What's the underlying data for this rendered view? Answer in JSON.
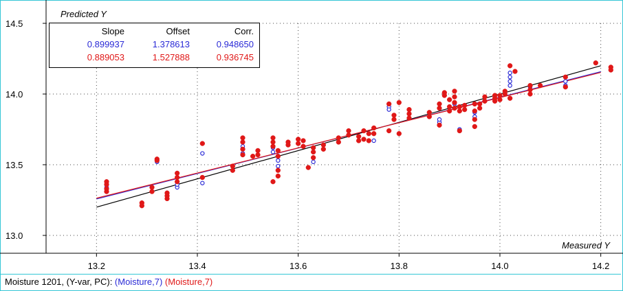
{
  "chart_data": {
    "type": "scatter",
    "ylabel": "Predicted Y",
    "xlabel": "Measured Y",
    "xlim": [
      13.1,
      14.24
    ],
    "ylim": [
      13.0,
      14.5
    ],
    "xticks": [
      "13.2",
      "13.4",
      "13.6",
      "13.8",
      "14.0",
      "14.2"
    ],
    "yticks": [
      "13.0",
      "13.5",
      "14.0",
      "14.5"
    ],
    "grid": true,
    "colors": {
      "blue": "#2a2ad6",
      "red": "#e01818",
      "target": "#000000"
    },
    "stats": {
      "headers": [
        "Slope",
        "Offset",
        "Corr."
      ],
      "rows": [
        {
          "color": "blue",
          "values": [
            "0.899937",
            "1.378613",
            "0.948650"
          ]
        },
        {
          "color": "red",
          "values": [
            "0.889053",
            "1.527888",
            "0.936745"
          ]
        }
      ]
    },
    "series": [
      {
        "style": "open-circle",
        "color": "blue",
        "points": [
          [
            13.22,
            13.34
          ],
          [
            13.22,
            13.31
          ],
          [
            13.32,
            13.52
          ],
          [
            13.36,
            13.34
          ],
          [
            13.36,
            13.36
          ],
          [
            13.41,
            13.58
          ],
          [
            13.41,
            13.37
          ],
          [
            13.49,
            13.63
          ],
          [
            13.49,
            13.58
          ],
          [
            13.55,
            13.62
          ],
          [
            13.55,
            13.59
          ],
          [
            13.56,
            13.53
          ],
          [
            13.56,
            13.49
          ],
          [
            13.63,
            13.52
          ],
          [
            13.75,
            13.67
          ],
          [
            13.78,
            13.91
          ],
          [
            13.78,
            13.89
          ],
          [
            13.88,
            13.8
          ],
          [
            13.88,
            13.82
          ],
          [
            13.91,
            13.93
          ],
          [
            13.92,
            13.75
          ],
          [
            13.95,
            13.87
          ],
          [
            13.95,
            13.84
          ],
          [
            14.02,
            14.15
          ],
          [
            14.02,
            14.12
          ],
          [
            14.02,
            14.09
          ],
          [
            14.02,
            14.06
          ],
          [
            14.03,
            14.16
          ],
          [
            14.06,
            14.05
          ],
          [
            14.13,
            14.09
          ],
          [
            14.13,
            14.06
          ]
        ]
      },
      {
        "style": "filled-circle",
        "color": "red",
        "points": [
          [
            13.22,
            13.38
          ],
          [
            13.22,
            13.36
          ],
          [
            13.22,
            13.33
          ],
          [
            13.22,
            13.31
          ],
          [
            13.29,
            13.23
          ],
          [
            13.29,
            13.21
          ],
          [
            13.31,
            13.34
          ],
          [
            13.31,
            13.31
          ],
          [
            13.32,
            13.54
          ],
          [
            13.32,
            13.53
          ],
          [
            13.34,
            13.3
          ],
          [
            13.34,
            13.28
          ],
          [
            13.34,
            13.26
          ],
          [
            13.36,
            13.44
          ],
          [
            13.36,
            13.41
          ],
          [
            13.36,
            13.38
          ],
          [
            13.41,
            13.65
          ],
          [
            13.41,
            13.41
          ],
          [
            13.47,
            13.49
          ],
          [
            13.47,
            13.46
          ],
          [
            13.49,
            13.69
          ],
          [
            13.49,
            13.66
          ],
          [
            13.49,
            13.61
          ],
          [
            13.49,
            13.57
          ],
          [
            13.51,
            13.56
          ],
          [
            13.52,
            13.6
          ],
          [
            13.52,
            13.57
          ],
          [
            13.55,
            13.69
          ],
          [
            13.55,
            13.66
          ],
          [
            13.55,
            13.63
          ],
          [
            13.55,
            13.38
          ],
          [
            13.56,
            13.6
          ],
          [
            13.56,
            13.56
          ],
          [
            13.56,
            13.46
          ],
          [
            13.56,
            13.42
          ],
          [
            13.58,
            13.66
          ],
          [
            13.58,
            13.64
          ],
          [
            13.6,
            13.68
          ],
          [
            13.6,
            13.65
          ],
          [
            13.61,
            13.67
          ],
          [
            13.61,
            13.63
          ],
          [
            13.63,
            13.62
          ],
          [
            13.63,
            13.59
          ],
          [
            13.63,
            13.55
          ],
          [
            13.62,
            13.48
          ],
          [
            13.65,
            13.64
          ],
          [
            13.65,
            13.61
          ],
          [
            13.68,
            13.69
          ],
          [
            13.68,
            13.66
          ],
          [
            13.7,
            13.74
          ],
          [
            13.7,
            13.71
          ],
          [
            13.72,
            13.7
          ],
          [
            13.72,
            13.67
          ],
          [
            13.73,
            13.74
          ],
          [
            13.73,
            13.68
          ],
          [
            13.74,
            13.72
          ],
          [
            13.74,
            13.67
          ],
          [
            13.75,
            13.76
          ],
          [
            13.75,
            13.72
          ],
          [
            13.78,
            13.93
          ],
          [
            13.78,
            13.74
          ],
          [
            13.79,
            13.85
          ],
          [
            13.79,
            13.82
          ],
          [
            13.8,
            13.94
          ],
          [
            13.8,
            13.72
          ],
          [
            13.82,
            13.89
          ],
          [
            13.82,
            13.86
          ],
          [
            13.82,
            13.83
          ],
          [
            13.86,
            13.87
          ],
          [
            13.86,
            13.84
          ],
          [
            13.88,
            13.93
          ],
          [
            13.88,
            13.9
          ],
          [
            13.88,
            13.78
          ],
          [
            13.89,
            14.01
          ],
          [
            13.89,
            13.99
          ],
          [
            13.9,
            13.96
          ],
          [
            13.9,
            13.91
          ],
          [
            13.9,
            13.88
          ],
          [
            13.91,
            14.02
          ],
          [
            13.91,
            13.98
          ],
          [
            13.91,
            13.94
          ],
          [
            13.91,
            13.9
          ],
          [
            13.92,
            13.91
          ],
          [
            13.92,
            13.88
          ],
          [
            13.92,
            13.74
          ],
          [
            13.93,
            13.92
          ],
          [
            13.93,
            13.89
          ],
          [
            13.95,
            13.93
          ],
          [
            13.95,
            13.88
          ],
          [
            13.95,
            13.82
          ],
          [
            13.95,
            13.77
          ],
          [
            13.96,
            13.93
          ],
          [
            13.96,
            13.9
          ],
          [
            13.97,
            13.98
          ],
          [
            13.97,
            13.95
          ],
          [
            13.99,
            13.97
          ],
          [
            13.99,
            13.95
          ],
          [
            13.99,
            13.99
          ],
          [
            14.0,
            13.99
          ],
          [
            14.0,
            13.96
          ],
          [
            14.01,
            14.02
          ],
          [
            14.01,
            14.0
          ],
          [
            14.02,
            14.2
          ],
          [
            14.02,
            13.97
          ],
          [
            14.03,
            14.16
          ],
          [
            14.06,
            14.06
          ],
          [
            14.06,
            14.03
          ],
          [
            14.06,
            14.0
          ],
          [
            14.08,
            14.06
          ],
          [
            14.13,
            14.12
          ],
          [
            14.13,
            14.05
          ],
          [
            14.19,
            14.22
          ],
          [
            14.22,
            14.19
          ],
          [
            14.22,
            14.17
          ]
        ]
      }
    ],
    "fit_lines": [
      {
        "color": "target",
        "slope": 1.0,
        "offset": 0.0
      },
      {
        "color": "blue",
        "slope": 0.899937,
        "offset": 1.378613
      },
      {
        "color": "red",
        "slope": 0.889053,
        "offset": 1.527888
      }
    ]
  },
  "status": {
    "text": "Moisture 1201, (Y-var, PC): ",
    "blue_part": "(Moisture,7)",
    "red_part": "(Moisture,7)"
  }
}
